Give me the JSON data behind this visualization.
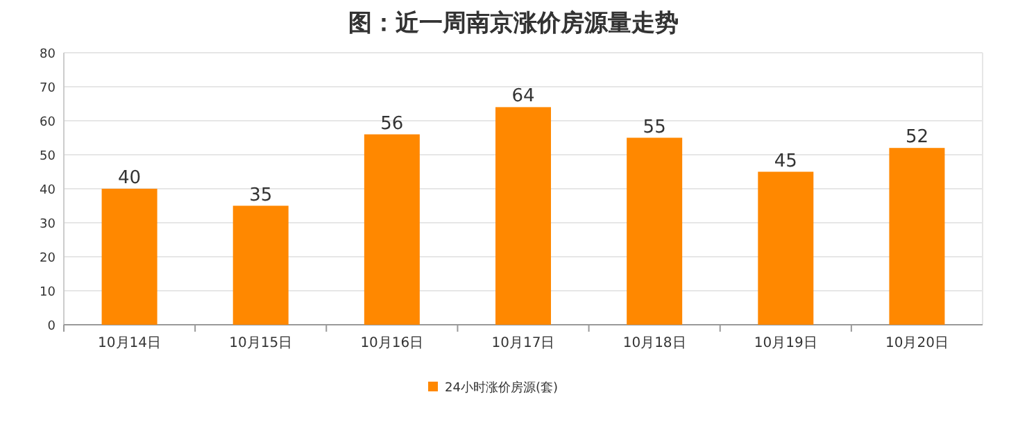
{
  "chart_data": {
    "type": "bar",
    "title": "图：近一周南京涨价房源量走势",
    "categories": [
      "10月14日",
      "10月15日",
      "10月16日",
      "10月17日",
      "10月18日",
      "10月19日",
      "10月20日"
    ],
    "series": [
      {
        "name": "24小时涨价房源(套)",
        "color": "#ff8800",
        "values": [
          40,
          35,
          56,
          64,
          55,
          45,
          52
        ]
      }
    ],
    "ylim": [
      0,
      80
    ],
    "yticks": [
      0,
      10,
      20,
      30,
      40,
      50,
      60,
      70,
      80
    ],
    "grid": "y",
    "legend": "bottom",
    "data_labels": true
  }
}
